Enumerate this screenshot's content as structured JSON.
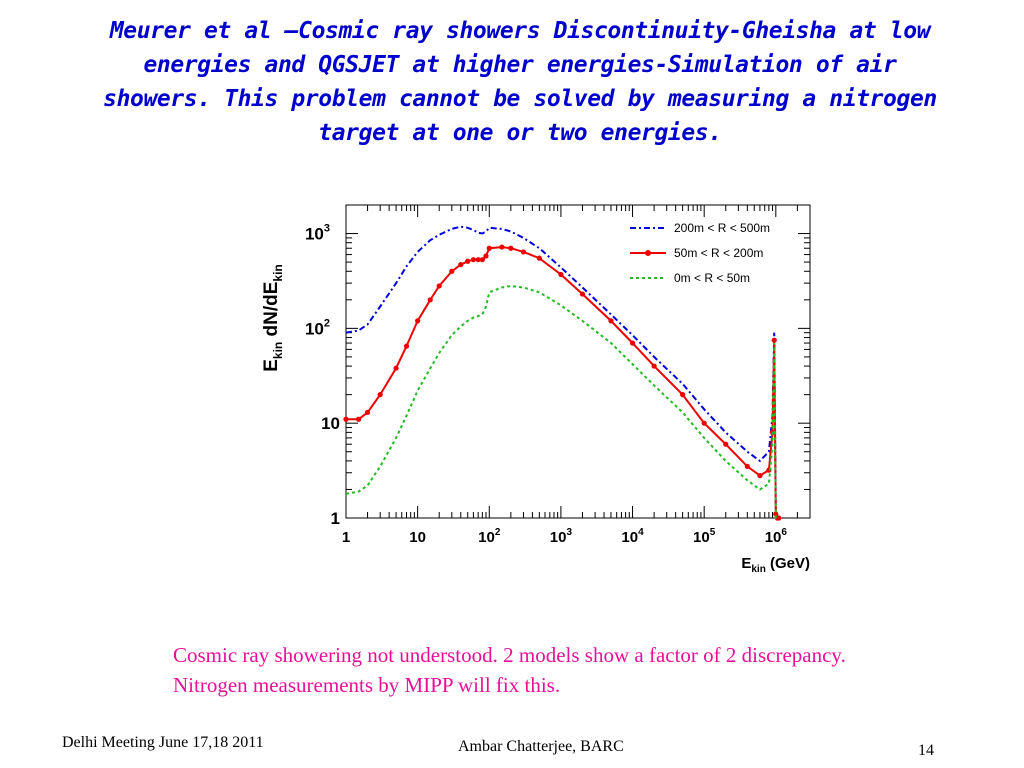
{
  "slide": {
    "title": "Meurer et al –Cosmic ray showers Discontinuity-Gheisha at low energies and QGSJET at higher energies-Simulation of air showers. This problem cannot be solved by measuring a nitrogen target at one or two energies.",
    "caption": "Cosmic ray showering not understood. 2 models show a factor of 2 discrepancy. Nitrogen measurements by MIPP will fix this.",
    "footer_left": "Delhi Meeting June 17,18 2011",
    "footer_center": "Ambar Chatterjee, BARC",
    "page_number": "14"
  },
  "chart_data": {
    "type": "line",
    "ylabel": "E_kin dN/dE_kin",
    "xlabel": "E_kin (GeV)",
    "xscale": "log",
    "yscale": "log",
    "xlim": [
      1,
      3000000
    ],
    "ylim": [
      1,
      2000
    ],
    "x_ticks": [
      {
        "value": 1,
        "base": "1",
        "sup": ""
      },
      {
        "value": 10,
        "base": "10",
        "sup": ""
      },
      {
        "value": 100,
        "base": "10",
        "sup": "2"
      },
      {
        "value": 1000,
        "base": "10",
        "sup": "3"
      },
      {
        "value": 10000,
        "base": "10",
        "sup": "4"
      },
      {
        "value": 100000,
        "base": "10",
        "sup": "5"
      },
      {
        "value": 1000000,
        "base": "10",
        "sup": "6"
      }
    ],
    "y_ticks": [
      {
        "value": 1,
        "base": "1",
        "sup": ""
      },
      {
        "value": 10,
        "base": "10",
        "sup": ""
      },
      {
        "value": 100,
        "base": "10",
        "sup": "2"
      },
      {
        "value": 1000,
        "base": "10",
        "sup": "3"
      }
    ],
    "legend_position": "top-right",
    "series": [
      {
        "name": "200m < R < 500m",
        "color": "#0000dd",
        "style": "dash-dot",
        "x": [
          1,
          1.5,
          2,
          3,
          5,
          7,
          10,
          15,
          20,
          30,
          40,
          50,
          60,
          70,
          80,
          90,
          100,
          150,
          200,
          300,
          500,
          1000,
          2000,
          5000,
          10000,
          20000,
          50000,
          100000,
          200000,
          400000,
          600000,
          800000,
          900000,
          950000,
          1000000,
          1050000,
          1100000
        ],
        "y": [
          90,
          95,
          110,
          170,
          300,
          450,
          640,
          850,
          970,
          1120,
          1180,
          1150,
          1090,
          1020,
          1000,
          1050,
          1150,
          1120,
          1050,
          900,
          700,
          440,
          270,
          140,
          85,
          50,
          26,
          14,
          8,
          5,
          4,
          5,
          12,
          90,
          1.2,
          1,
          1
        ]
      },
      {
        "name": "50m < R < 200m",
        "color": "#ee0000",
        "style": "solid-dots",
        "x": [
          1,
          1.5,
          2,
          3,
          5,
          7,
          10,
          15,
          20,
          30,
          40,
          50,
          60,
          70,
          80,
          90,
          100,
          150,
          200,
          300,
          500,
          1000,
          2000,
          5000,
          10000,
          20000,
          50000,
          100000,
          200000,
          400000,
          600000,
          800000,
          900000,
          950000,
          1000000,
          1050000,
          1100000
        ],
        "y": [
          11,
          11,
          13,
          20,
          38,
          65,
          120,
          200,
          280,
          400,
          470,
          510,
          530,
          530,
          530,
          580,
          700,
          720,
          700,
          640,
          550,
          370,
          230,
          120,
          70,
          40,
          20,
          10,
          6,
          3.5,
          2.8,
          3.2,
          8,
          75,
          1.1,
          1,
          1
        ]
      },
      {
        "name": "0m < R <  50m",
        "color": "#22bb22",
        "style": "dotted",
        "x": [
          1,
          1.5,
          2,
          3,
          5,
          7,
          10,
          15,
          20,
          30,
          40,
          50,
          60,
          70,
          80,
          90,
          100,
          150,
          200,
          300,
          500,
          1000,
          2000,
          5000,
          10000,
          20000,
          50000,
          100000,
          200000,
          400000,
          600000,
          800000,
          900000,
          950000,
          1000000,
          1050000,
          1100000
        ],
        "y": [
          1.8,
          1.9,
          2.2,
          3.5,
          7,
          12,
          22,
          38,
          55,
          85,
          105,
          120,
          130,
          135,
          140,
          170,
          240,
          270,
          280,
          270,
          240,
          175,
          120,
          70,
          42,
          25,
          13,
          7,
          4,
          2.5,
          2,
          2.3,
          6,
          70,
          1,
          1,
          1
        ]
      }
    ]
  }
}
